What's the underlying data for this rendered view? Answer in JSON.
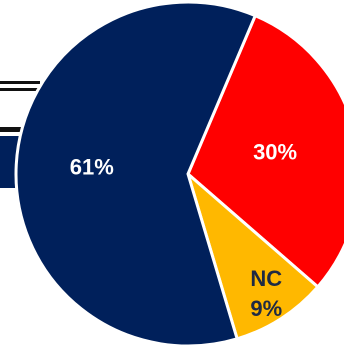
{
  "chart_data": {
    "type": "pie",
    "title": "",
    "slices": [
      {
        "label": "",
        "value": 30,
        "value_label": "30%",
        "color": "#FF0000",
        "label_color": "#FFFFFF"
      },
      {
        "label": "NC",
        "value": 9,
        "value_label": "9%",
        "color": "#FFB800",
        "label_color": "#1F2A44"
      },
      {
        "label": "",
        "value": 61,
        "value_label": "61%",
        "color": "#00205B",
        "label_color": "#FFFFFF"
      }
    ],
    "legend": "none"
  },
  "background_fragments": {
    "line_color": "#111111",
    "bar_color": "#00205B"
  }
}
